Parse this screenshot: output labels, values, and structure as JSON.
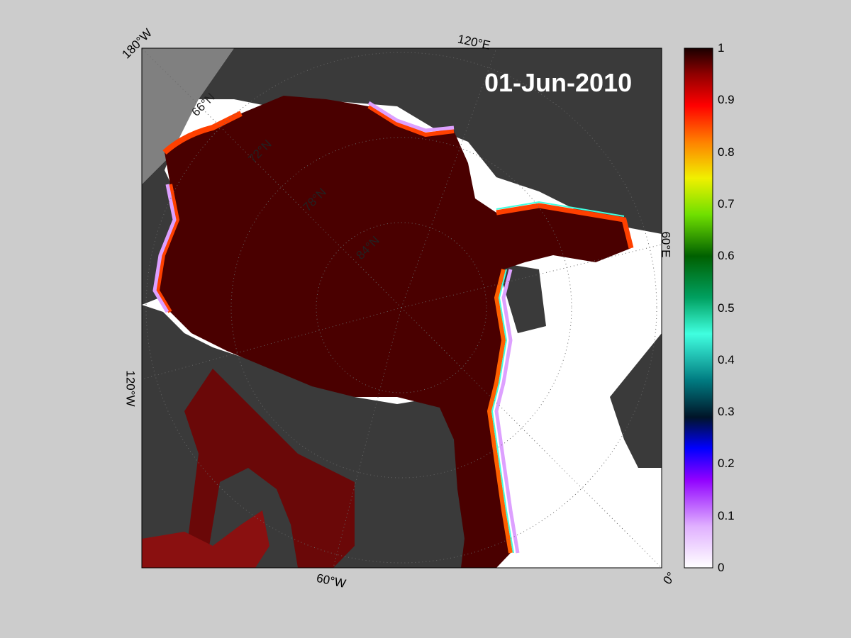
{
  "map": {
    "date": "01-Jun-2010",
    "longitude_labels": [
      "180°W",
      "120°E",
      "60°E",
      "0°",
      "60°W",
      "120°W"
    ],
    "latitude_labels": [
      "66°N",
      "72°N",
      "78°N",
      "84°N"
    ],
    "colors": {
      "ocean_open": "#ffffff",
      "land": "#3a3a3a",
      "land_outside": "#808080",
      "ice_high": "#4a0000",
      "page_background": "#cccccc"
    }
  },
  "colorbar": {
    "range": [
      0,
      1
    ],
    "ticks": [
      "1",
      "0.9",
      "0.8",
      "0.7",
      "0.6",
      "0.5",
      "0.4",
      "0.3",
      "0.2",
      "0.1",
      "0"
    ],
    "colormap": [
      "#ffffff",
      "#dda0ff",
      "#7f00ff",
      "#0000ff",
      "#001a33",
      "#00bfbf",
      "#00ff99",
      "#008000",
      "#80ff00",
      "#ffff00",
      "#ff8000",
      "#ff0000",
      "#600000",
      "#1a0000"
    ]
  }
}
